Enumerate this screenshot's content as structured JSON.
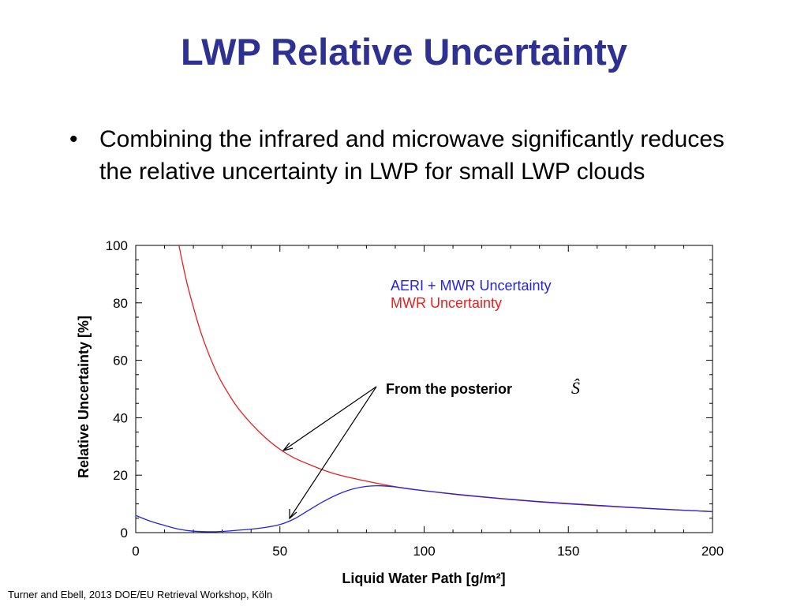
{
  "slide": {
    "title": "LWP Relative Uncertainty",
    "bullet": "Combining the infrared and microwave significantly reduces the relative uncertainty in LWP for small LWP clouds",
    "footer": "Turner and Ebell, 2013 DOE/EU Retrieval Workshop, Köln"
  },
  "chart_data": {
    "type": "line",
    "xlabel": "Liquid Water Path [g/m²]",
    "ylabel": "Relative Uncertainty [%]",
    "xlim": [
      0,
      200
    ],
    "ylim": [
      0,
      100
    ],
    "x_ticks": [
      0,
      50,
      100,
      150,
      200
    ],
    "y_ticks": [
      0,
      20,
      40,
      60,
      80,
      100
    ],
    "legend_position": "top-right",
    "annotation": "From the posterior",
    "annotation_symbol": "Ŝ",
    "series": [
      {
        "name": "AERI + MWR Uncertainty",
        "color": "#2323e0",
        "x": [
          0,
          5,
          10,
          15,
          20,
          25,
          30,
          35,
          40,
          45,
          50,
          55,
          60,
          65,
          70,
          75,
          80,
          85,
          90,
          95,
          100,
          110,
          120,
          130,
          140,
          150,
          160,
          170,
          180,
          190,
          200
        ],
        "y": [
          6,
          4,
          2.5,
          1.2,
          0.5,
          0.3,
          0.4,
          0.8,
          1.2,
          1.8,
          2.8,
          4.8,
          7.8,
          10.8,
          13.3,
          15.1,
          16.1,
          16.3,
          15.9,
          15.2,
          14.6,
          13.5,
          12.5,
          11.6,
          10.8,
          10.1,
          9.5,
          8.9,
          8.3,
          7.8,
          7.3
        ]
      },
      {
        "name": "MWR Uncertainty",
        "color": "#e62020",
        "x": [
          15,
          17.5,
          20,
          22.5,
          25,
          27.5,
          30,
          35,
          40,
          45,
          50,
          55,
          60,
          65,
          70,
          80,
          90,
          100,
          110,
          120,
          130,
          140,
          150,
          160,
          170,
          180,
          190,
          200
        ],
        "y": [
          100,
          88,
          78.5,
          70,
          63,
          57,
          52,
          44,
          38,
          33,
          29,
          26,
          23.8,
          21.8,
          20.2,
          17.9,
          16,
          14.6,
          13.4,
          12.4,
          11.5,
          10.7,
          10,
          9.4,
          8.8,
          8.3,
          7.8,
          7.3
        ]
      }
    ]
  }
}
